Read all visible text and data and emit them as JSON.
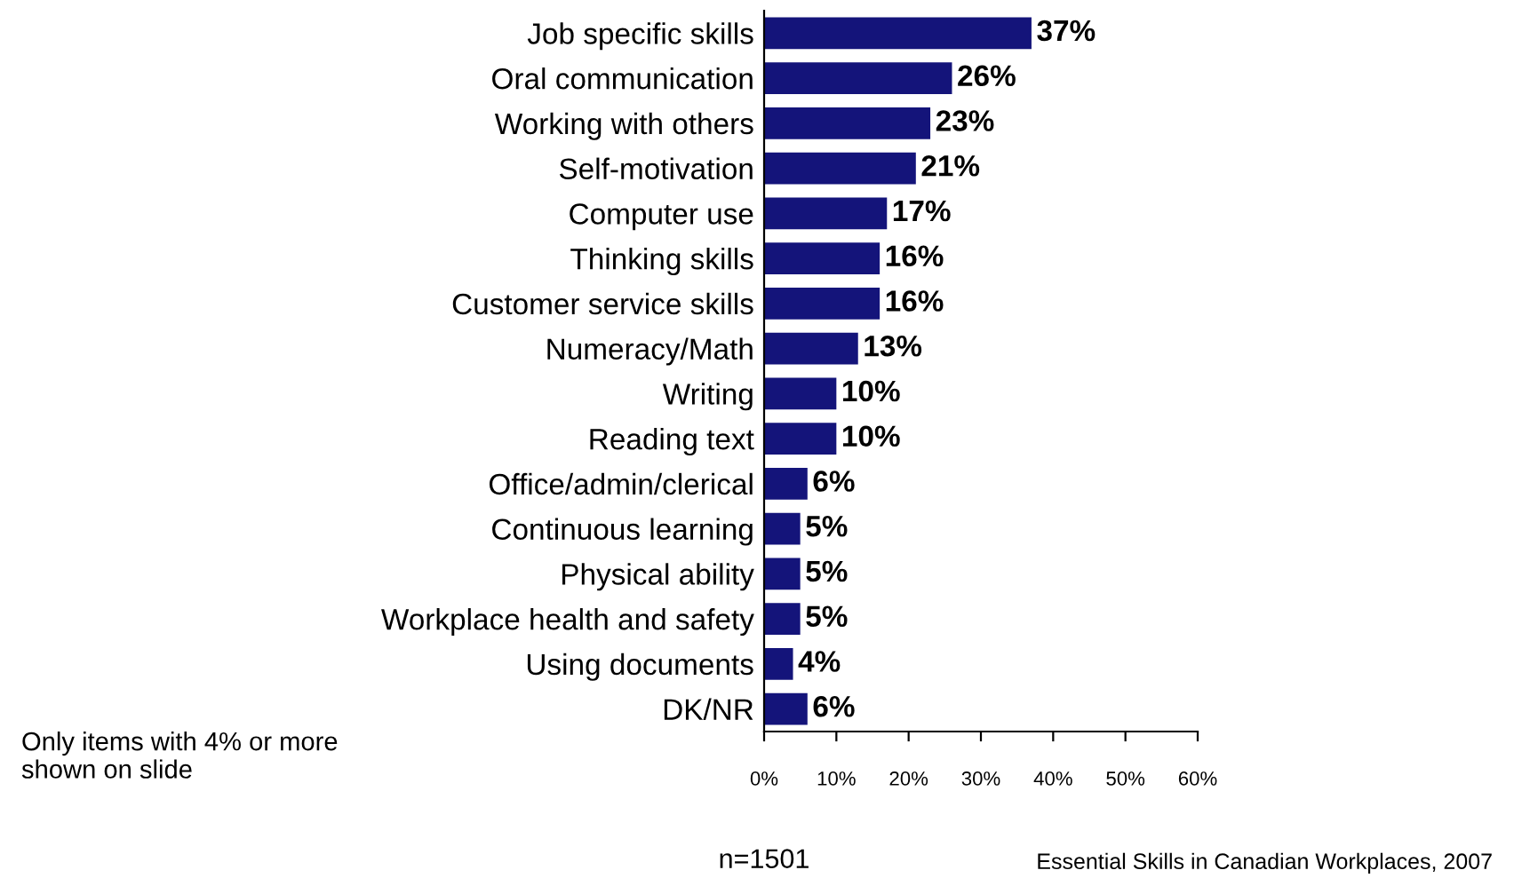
{
  "chart_data": {
    "type": "bar",
    "orientation": "horizontal",
    "categories": [
      "Job specific skills",
      "Oral communication",
      "Working with others",
      "Self-motivation",
      "Computer use",
      "Thinking skills",
      "Customer service skills",
      "Numeracy/Math",
      "Writing",
      "Reading text",
      "Office/admin/clerical",
      "Continuous learning",
      "Physical ability",
      "Workplace health and safety",
      "Using documents",
      "DK/NR"
    ],
    "values": [
      37,
      26,
      23,
      21,
      17,
      16,
      16,
      13,
      10,
      10,
      6,
      5,
      5,
      5,
      4,
      6
    ],
    "value_labels": [
      "37%",
      "26%",
      "23%",
      "21%",
      "17%",
      "16%",
      "16%",
      "13%",
      "10%",
      "10%",
      "6%",
      "5%",
      "5%",
      "5%",
      "4%",
      "6%"
    ],
    "color": "#14147a",
    "xlim": [
      0,
      60
    ],
    "xticks": [
      {
        "value": 0,
        "label": "0%"
      },
      {
        "value": 10,
        "label": "10%"
      },
      {
        "value": 20,
        "label": "20%"
      },
      {
        "value": 30,
        "label": "30%"
      },
      {
        "value": 40,
        "label": "40%"
      },
      {
        "value": 50,
        "label": "50%"
      },
      {
        "value": 60,
        "label": "60%"
      }
    ],
    "grid": false,
    "legend": false,
    "annotations": [
      "Only items with 4% or more shown on slide",
      "n=1501",
      "Essential Skills in Canadian Workplaces, 2007"
    ]
  }
}
